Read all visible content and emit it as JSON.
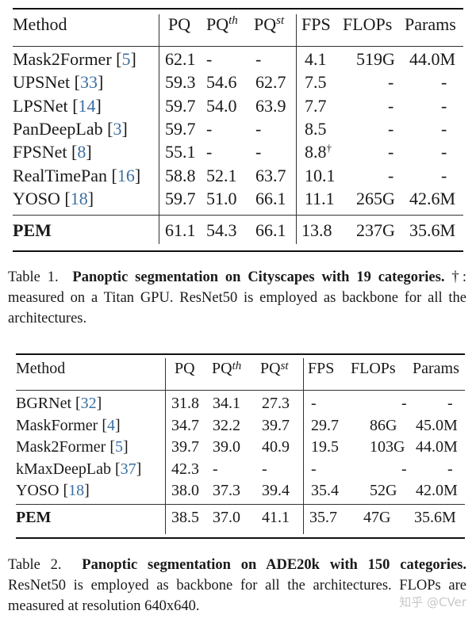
{
  "table1": {
    "headers": {
      "method": "Method",
      "pq": "PQ",
      "pq_th_base": "PQ",
      "pq_th_sub": "th",
      "pq_st_base": "PQ",
      "pq_st_sub": "st",
      "fps": "FPS",
      "flops": "FLOPs",
      "params": "Params"
    },
    "rows": [
      {
        "name": "Mask2Former",
        "cite": "5",
        "pq": "62.1",
        "pq_th": "-",
        "pq_st": "-",
        "fps": "4.1",
        "fps_mark": "",
        "flops": "519G",
        "params": "44.0M"
      },
      {
        "name": "UPSNet",
        "cite": "33",
        "pq": "59.3",
        "pq_th": "54.6",
        "pq_st": "62.7",
        "fps": "7.5",
        "fps_mark": "",
        "flops": "-",
        "params": "-"
      },
      {
        "name": "LPSNet",
        "cite": "14",
        "pq": "59.7",
        "pq_th": "54.0",
        "pq_st": "63.9",
        "fps": "7.7",
        "fps_mark": "",
        "flops": "-",
        "params": "-"
      },
      {
        "name": "PanDeepLab",
        "cite": "3",
        "pq": "59.7",
        "pq_th": "-",
        "pq_st": "-",
        "fps": "8.5",
        "fps_mark": "",
        "flops": "-",
        "params": "-"
      },
      {
        "name": "FPSNet",
        "cite": "8",
        "pq": "55.1",
        "pq_th": "-",
        "pq_st": "-",
        "fps": "8.8",
        "fps_mark": "†",
        "flops": "-",
        "params": "-"
      },
      {
        "name": "RealTimePan",
        "cite": "16",
        "pq": "58.8",
        "pq_th": "52.1",
        "pq_st": "63.7",
        "fps": "10.1",
        "fps_mark": "",
        "flops": "-",
        "params": "-"
      },
      {
        "name": "YOSO",
        "cite": "18",
        "pq": "59.7",
        "pq_th": "51.0",
        "pq_st": "66.1",
        "fps": "11.1",
        "fps_mark": "",
        "flops": "265G",
        "params": "42.6M"
      }
    ],
    "ours": {
      "name": "PEM",
      "pq": "61.1",
      "pq_th": "54.3",
      "pq_st": "66.1",
      "fps": "13.8",
      "flops": "237G",
      "params": "35.6M"
    },
    "caption": {
      "label": "Table 1.",
      "bold": "Panoptic segmentation on Cityscapes with 19 categories.",
      "rest": "†: measured on a Titan GPU. ResNet50 is employed as backbone for all the architectures."
    }
  },
  "table2": {
    "headers": {
      "method": "Method",
      "pq": "PQ",
      "pq_th_base": "PQ",
      "pq_th_sub": "th",
      "pq_st_base": "PQ",
      "pq_st_sub": "st",
      "fps": "FPS",
      "flops": "FLOPs",
      "params": "Params"
    },
    "rows": [
      {
        "name": "BGRNet",
        "cite": "32",
        "pq": "31.8",
        "pq_th": "34.1",
        "pq_st": "27.3",
        "fps": "-",
        "flops": "-",
        "params": "-"
      },
      {
        "name": "MaskFormer",
        "cite": "4",
        "pq": "34.7",
        "pq_th": "32.2",
        "pq_st": "39.7",
        "fps": "29.7",
        "flops": "86G",
        "params": "45.0M"
      },
      {
        "name": "Mask2Former",
        "cite": "5",
        "pq": "39.7",
        "pq_th": "39.0",
        "pq_st": "40.9",
        "fps": "19.5",
        "flops": "103G",
        "params": "44.0M"
      },
      {
        "name": "kMaxDeepLab",
        "cite": "37",
        "pq": "42.3",
        "pq_th": "-",
        "pq_st": "-",
        "fps": "-",
        "flops": "-",
        "params": "-"
      },
      {
        "name": "YOSO",
        "cite": "18",
        "pq": "38.0",
        "pq_th": "37.3",
        "pq_st": "39.4",
        "fps": "35.4",
        "flops": "52G",
        "params": "42.0M"
      }
    ],
    "ours": {
      "name": "PEM",
      "pq": "38.5",
      "pq_th": "37.0",
      "pq_st": "41.1",
      "fps": "35.7",
      "flops": "47G",
      "params": "35.6M"
    },
    "caption": {
      "label": "Table 2.",
      "bold": "Panoptic segmentation on ADE20k with 150 categories.",
      "rest": "ResNet50 is employed as backbone for all the architectures. FLOPs are measured at resolution 640x640."
    }
  },
  "watermark": "知乎 @CVer"
}
